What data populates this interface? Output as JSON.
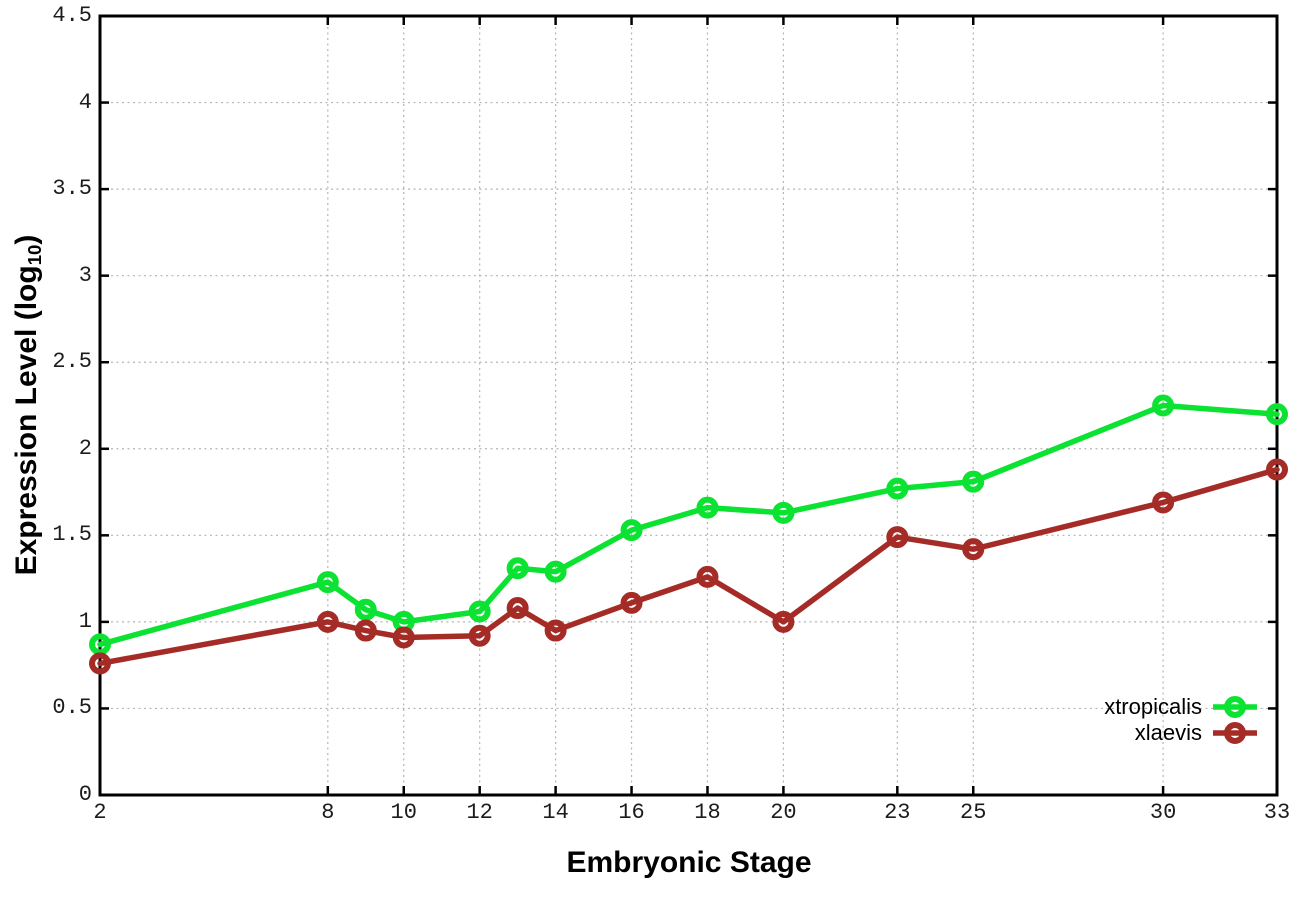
{
  "figure": {
    "background": "#ffffff",
    "border_color": "#000000",
    "grid_color": "#b4b4b4",
    "tick_label_color": "#1c1c1c"
  },
  "axes": {
    "x_title": "Embryonic Stage",
    "y_title_prefix": "Expression Level (log",
    "y_title_sub": "10",
    "y_title_suffix": ")"
  },
  "legend": {
    "items": [
      {
        "label": "xtropicalis",
        "color": "#0ce232"
      },
      {
        "label": "xlaevis",
        "color": "#a52c26"
      }
    ]
  },
  "chart_data": {
    "type": "line",
    "title": "",
    "xlabel": "Embryonic Stage",
    "ylabel": "Expression Level (log10)",
    "xlim": [
      2,
      33
    ],
    "ylim": [
      0,
      4.5
    ],
    "grid": true,
    "legend_position": "inside-bottom-right",
    "marker": "open-circle",
    "x": [
      2,
      8,
      9,
      10,
      12,
      13,
      14,
      16,
      18,
      20,
      23,
      25,
      30,
      33
    ],
    "x_tick_values": [
      2,
      8,
      10,
      12,
      14,
      16,
      18,
      20,
      23,
      25,
      30,
      33
    ],
    "x_tick_labels": [
      "2",
      "8",
      "10",
      "12",
      "14",
      "16",
      "18",
      "20",
      "23",
      "25",
      "30",
      "33"
    ],
    "y_tick_values": [
      0,
      0.5,
      1,
      1.5,
      2,
      2.5,
      3,
      3.5,
      4,
      4.5
    ],
    "y_tick_labels": [
      "0",
      "0.5",
      "1",
      "1.5",
      "2",
      "2.5",
      "3",
      "3.5",
      "4",
      "4.5"
    ],
    "series": [
      {
        "name": "xtropicalis",
        "color": "#0ce232",
        "values": [
          0.87,
          1.23,
          1.07,
          1.0,
          1.06,
          1.31,
          1.29,
          1.53,
          1.66,
          1.63,
          1.77,
          1.81,
          2.25,
          2.2
        ]
      },
      {
        "name": "xlaevis",
        "color": "#a52c26",
        "values": [
          0.76,
          1.0,
          0.95,
          0.91,
          0.92,
          1.08,
          0.95,
          1.11,
          1.26,
          1.0,
          1.49,
          1.42,
          1.69,
          1.88
        ]
      }
    ]
  }
}
